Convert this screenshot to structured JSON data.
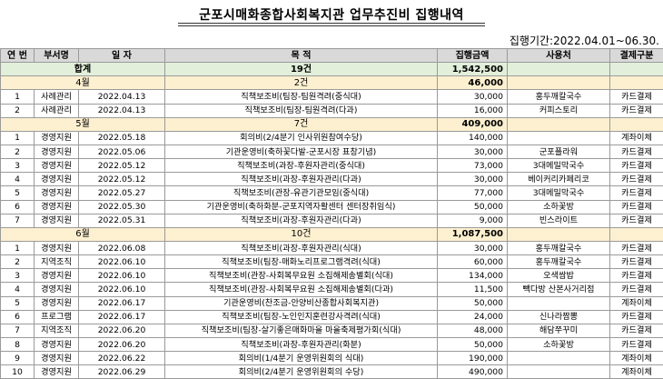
{
  "title": "군포시매화종합사회복지관 업무추진비 집행내역",
  "period": "집행기간:2022.04.01~06.30.",
  "headers": [
    "연 번",
    "부서명",
    "일 자",
    "목 적",
    "집행금액",
    "사용처",
    "결제구분"
  ],
  "total": {
    "label": "합계",
    "count": "19건",
    "amount": "1,542,500"
  },
  "months": [
    {
      "label": "4월",
      "count": "2건",
      "amount": "46,000",
      "rows": [
        {
          "no": "1",
          "dept": "사례관리",
          "date": "2022.04.13",
          "purpose": "직책보조비(팀장-팀원격려(중식대)",
          "amount": "30,000",
          "place": "홍두깨칼국수",
          "pay": "카드결제"
        },
        {
          "no": "2",
          "dept": "사례관리",
          "date": "2022.04.13",
          "purpose": "직책보조비(팀장-팀원격려(다과)",
          "amount": "16,000",
          "place": "커피스토리",
          "pay": "카드결제"
        }
      ]
    },
    {
      "label": "5월",
      "count": "7건",
      "amount": "409,000",
      "rows": [
        {
          "no": "1",
          "dept": "경영지원",
          "date": "2022.05.18",
          "purpose": "회의비(2/4분기 인사위원참여수당)",
          "amount": "140,000",
          "place": "",
          "pay": "계좌이체"
        },
        {
          "no": "2",
          "dept": "경영지원",
          "date": "2022.05.06",
          "purpose": "기관운영비(축하꽃다발-군포시장 표창기념)",
          "amount": "30,000",
          "place": "군포플라워",
          "pay": "카드결제"
        },
        {
          "no": "3",
          "dept": "경영지원",
          "date": "2022.05.12",
          "purpose": "직책보조비(과장-후원자관리(중식대)",
          "amount": "73,000",
          "place": "3대메밀막국수",
          "pay": "카드결제"
        },
        {
          "no": "4",
          "dept": "경영지원",
          "date": "2022.05.12",
          "purpose": "직책보조비(과장-후원자관리(다과)",
          "amount": "30,000",
          "place": "베이커리카페리코",
          "pay": "카드결제"
        },
        {
          "no": "5",
          "dept": "경영지원",
          "date": "2022.05.27",
          "purpose": "직책보조비(관장-유관기관모임(중식대)",
          "amount": "77,000",
          "place": "3대메밀막국수",
          "pay": "카드결제"
        },
        {
          "no": "6",
          "dept": "경영지원",
          "date": "2022.05.30",
          "purpose": "기관운영비(축하화분-군포지역자활센터 센터장취임식)",
          "amount": "50,000",
          "place": "소하꽃방",
          "pay": "카드결제"
        },
        {
          "no": "7",
          "dept": "경영지원",
          "date": "2022.05.31",
          "purpose": "직책보조비(과장-후원자관리(다과)",
          "amount": "9,000",
          "place": "빈스라이트",
          "pay": "카드결제"
        }
      ]
    },
    {
      "label": "6월",
      "count": "10건",
      "amount": "1,087,500",
      "rows": [
        {
          "no": "1",
          "dept": "경영지원",
          "date": "2022.06.08",
          "purpose": "직책보조비(과장-후원자관리(식대)",
          "amount": "30,000",
          "place": "홍두깨칼국수",
          "pay": "카드결제"
        },
        {
          "no": "2",
          "dept": "지역조직",
          "date": "2022.06.10",
          "purpose": "직책보조비(팀장-매화노리프로그램격려(식대)",
          "amount": "60,000",
          "place": "홍두깨칼국수",
          "pay": "카드결제"
        },
        {
          "no": "3",
          "dept": "경영지원",
          "date": "2022.06.10",
          "purpose": "직책보조비(관장-사회복무요원 소집해제송별회(식대)",
          "amount": "134,000",
          "place": "오색쌈밥",
          "pay": "카드결제"
        },
        {
          "no": "4",
          "dept": "경영지원",
          "date": "2022.06.10",
          "purpose": "직책보조비(관장-사회복무요원 소집해제송별회(다과)",
          "amount": "11,500",
          "place": "빽다방 산본사거리점",
          "pay": "카드결제"
        },
        {
          "no": "5",
          "dept": "경영지원",
          "date": "2022.06.17",
          "purpose": "기관운영비(찬조금-안양비산종합사회복지관)",
          "amount": "50,000",
          "place": "",
          "pay": "계좌이체"
        },
        {
          "no": "6",
          "dept": "프로그램",
          "date": "2022.06.17",
          "purpose": "직책보조비(팀장-노인인지훈련강사격려(식대)",
          "amount": "24,000",
          "place": "신나라짬뽕",
          "pay": "카드결제"
        },
        {
          "no": "7",
          "dept": "지역조직",
          "date": "2022.06.20",
          "purpose": "직책보조비(팀장-살기좋은매화마을 마을축제평가회(식대)",
          "amount": "48,000",
          "place": "해담쭈꾸미",
          "pay": "카드결제"
        },
        {
          "no": "8",
          "dept": "경영지원",
          "date": "2022.06.20",
          "purpose": "직책보조비(과장-후원자관리(화분)",
          "amount": "50,000",
          "place": "소하꽃방",
          "pay": "카드결제"
        },
        {
          "no": "9",
          "dept": "경영지원",
          "date": "2022.06.22",
          "purpose": "회의비(1/4분기 운영위원회의 식대)",
          "amount": "190,000",
          "place": "",
          "pay": "계좌이체"
        },
        {
          "no": "10",
          "dept": "경영지원",
          "date": "2022.06.29",
          "purpose": "회의비(2/4분기 운영위원회의 수당)",
          "amount": "490,000",
          "place": "",
          "pay": "계좌이체"
        }
      ]
    }
  ]
}
